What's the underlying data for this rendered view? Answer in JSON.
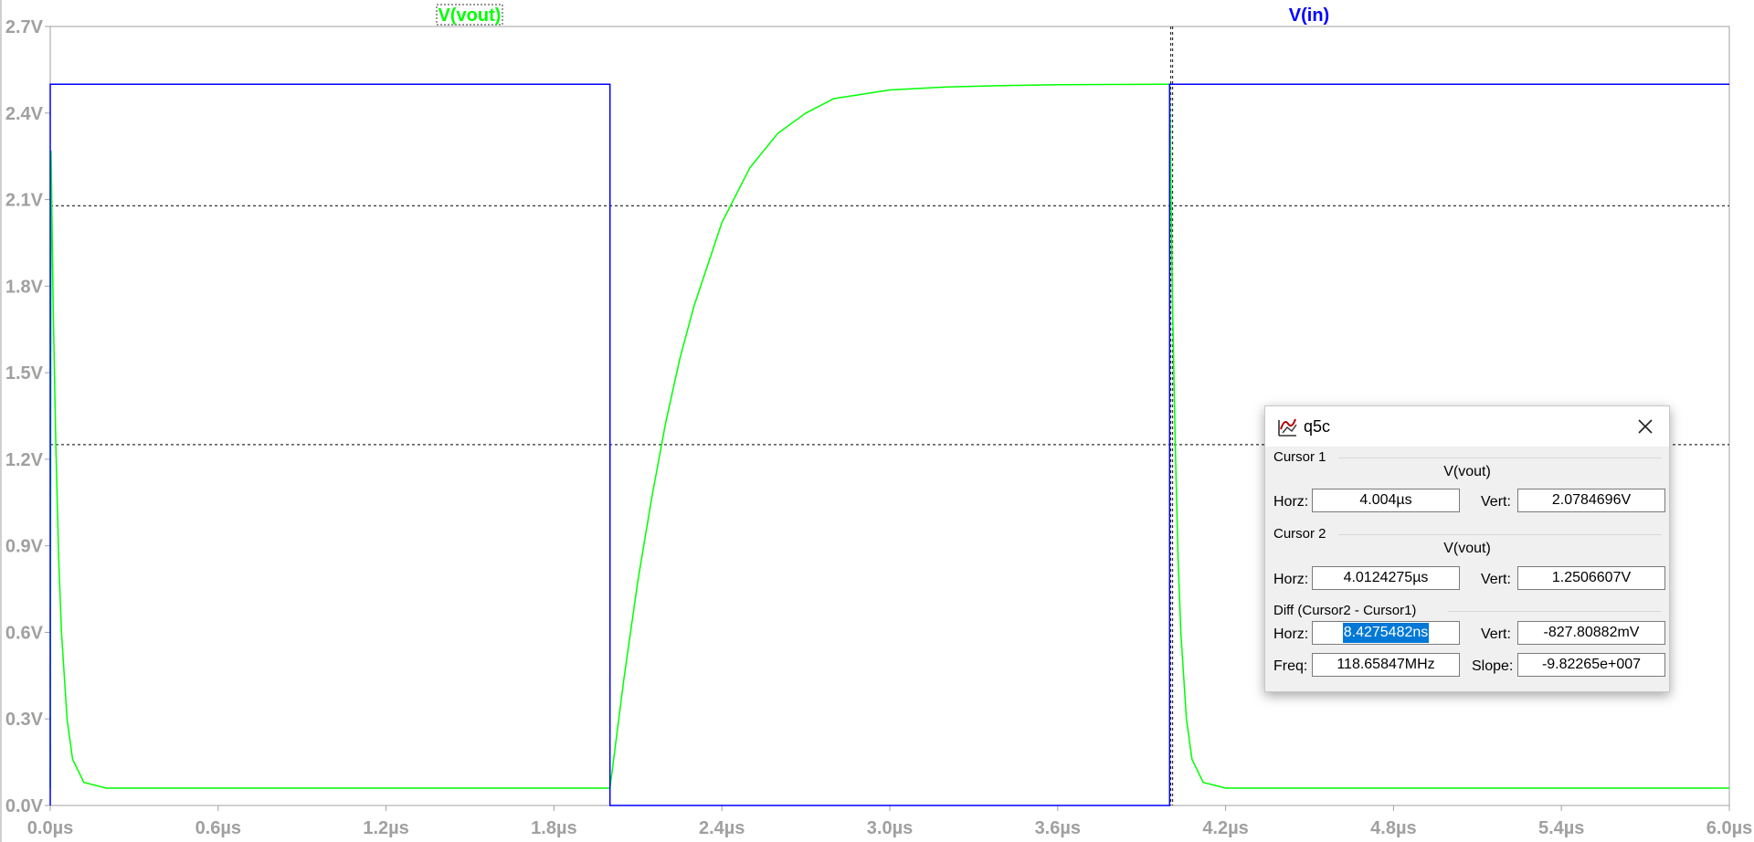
{
  "chart_data": {
    "type": "line",
    "title": "",
    "xlabel": "",
    "ylabel": "",
    "xlim": [
      0,
      6
    ],
    "ylim": [
      0,
      2.7
    ],
    "x_ticks": [
      "0.0µs",
      "0.6µs",
      "1.2µs",
      "1.8µs",
      "2.4µs",
      "3.0µs",
      "3.6µs",
      "4.2µs",
      "4.8µs",
      "5.4µs",
      "6.0µs"
    ],
    "y_ticks": [
      "0.0V",
      "0.3V",
      "0.6V",
      "0.9V",
      "1.2V",
      "1.5V",
      "1.8V",
      "2.1V",
      "2.4V",
      "2.7V"
    ],
    "series": [
      {
        "name": "V(vout)",
        "color": "#00ff00",
        "x": [
          0,
          0.003,
          0.01,
          0.02,
          0.03,
          0.04,
          0.06,
          0.08,
          0.12,
          0.2,
          1.0,
          2.0,
          2.05,
          2.1,
          2.15,
          2.2,
          2.25,
          2.3,
          2.4,
          2.5,
          2.6,
          2.7,
          2.8,
          3.0,
          3.2,
          3.4,
          3.6,
          4.0,
          4.003,
          4.01,
          4.02,
          4.03,
          4.04,
          4.06,
          4.08,
          4.12,
          4.2,
          5.0,
          6.0
        ],
        "y": [
          0.06,
          2.27,
          1.75,
          1.25,
          0.86,
          0.6,
          0.3,
          0.16,
          0.08,
          0.06,
          0.06,
          0.06,
          0.44,
          0.78,
          1.07,
          1.33,
          1.55,
          1.73,
          2.02,
          2.21,
          2.33,
          2.4,
          2.45,
          2.48,
          2.49,
          2.495,
          2.498,
          2.5,
          2.27,
          1.75,
          1.25,
          0.86,
          0.6,
          0.3,
          0.16,
          0.08,
          0.06,
          0.06,
          0.06
        ]
      },
      {
        "name": "V(in)",
        "color": "#0000ff",
        "x": [
          0,
          0,
          2.0,
          2.0,
          4.0,
          4.0,
          6.0
        ],
        "y": [
          0,
          2.5,
          2.5,
          0,
          0,
          2.5,
          2.5
        ]
      }
    ],
    "cursor_lines": {
      "vertical_x": 4.004,
      "horizontal_y": [
        2.0784696,
        1.2506607
      ]
    },
    "grid": false,
    "legend": "top"
  },
  "dialog": {
    "title": "q5c",
    "icon": "waveform-icon",
    "cursor1": {
      "label": "Cursor 1",
      "trace": "V(vout)",
      "horz_label": "Horz:",
      "horz": "4.004µs",
      "vert_label": "Vert:",
      "vert": "2.0784696V"
    },
    "cursor2": {
      "label": "Cursor 2",
      "trace": "V(vout)",
      "horz_label": "Horz:",
      "horz": "4.0124275µs",
      "vert_label": "Vert:",
      "vert": "1.2506607V"
    },
    "diff": {
      "label": "Diff (Cursor2 - Cursor1)",
      "horz_label": "Horz:",
      "horz": "8.4275482ns",
      "vert_label": "Vert:",
      "vert": "-827.80882mV",
      "freq_label": "Freq:",
      "freq": "118.65847MHz",
      "slope_label": "Slope:",
      "slope": "-9.82265e+007"
    }
  }
}
